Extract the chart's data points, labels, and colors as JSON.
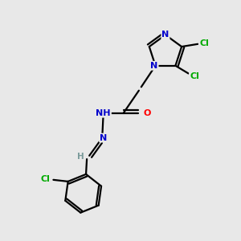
{
  "bg_color": "#e8e8e8",
  "atom_colors": {
    "N": "#0000cc",
    "O": "#ff0000",
    "Cl": "#00aa00",
    "C": "#000000",
    "H": "#7a9a9a"
  },
  "bond_color": "#000000",
  "bond_width": 1.6,
  "figsize": [
    3.0,
    3.0
  ],
  "dpi": 100
}
